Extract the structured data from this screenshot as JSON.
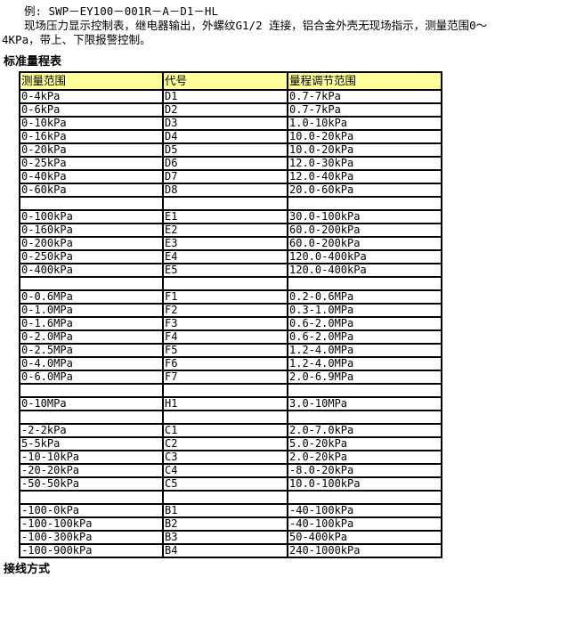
{
  "page": {
    "example_line": "例: SWP－EY100－001R－A－D1－HL",
    "desc_line1": "现场压力显示控制表，继电器输出，外螺纹G1/2 连接，铝合金外壳无现场指示，测量范围0～",
    "desc_line2": "4KPa，带上、下限报警控制。",
    "table_title": "标准量程表",
    "footer_title": "接线方式"
  },
  "table": {
    "header_bg": "#FFFF99",
    "border_color": "#000000",
    "headers": [
      "测量范围",
      "代号",
      "量程调节范围"
    ],
    "rows": [
      [
        "0-4kPa",
        "D1",
        "0.7-7kPa"
      ],
      [
        "0-6kPa",
        "D2",
        "0.7-7kPa"
      ],
      [
        "0-10kPa",
        "D3",
        "1.0-10kPa"
      ],
      [
        "0-16kPa",
        "D4",
        "10.0-20kPa"
      ],
      [
        "0-20kPa",
        "D5",
        "10.0-20kPa"
      ],
      [
        "0-25kPa",
        "D6",
        "12.0-30kPa"
      ],
      [
        "0-40kPa",
        "D7",
        "12.0-40kPa"
      ],
      [
        "0-60kPa",
        "D8",
        "20.0-60kPa"
      ],
      [
        "",
        "",
        ""
      ],
      [
        "0-100kPa",
        "E1",
        "30.0-100kPa"
      ],
      [
        "0-160kPa",
        "E2",
        "60.0-200kPa"
      ],
      [
        "0-200kPa",
        "E3",
        "60.0-200kPa"
      ],
      [
        "0-250kPa",
        "E4",
        "120.0-400kPa"
      ],
      [
        "0-400kPa",
        "E5",
        "120.0-400kPa"
      ],
      [
        "",
        "",
        ""
      ],
      [
        "0-0.6MPa",
        "F1",
        "0.2-0.6MPa"
      ],
      [
        "0-1.0MPa",
        "F2",
        "0.3-1.0MPa"
      ],
      [
        "0-1.6MPa",
        "F3",
        "0.6-2.0MPa"
      ],
      [
        "0-2.0MPa",
        "F4",
        "0.6-2.0MPa"
      ],
      [
        "0-2.5MPa",
        "F5",
        "1.2-4.0MPa"
      ],
      [
        "0-4.0MPa",
        "F6",
        "1.2-4.0MPa"
      ],
      [
        "0-6.0MPa",
        "F7",
        "2.0-6.9MPa"
      ],
      [
        "",
        "",
        ""
      ],
      [
        "0-10MPa",
        "H1",
        "3.0-10MPa"
      ],
      [
        "",
        "",
        ""
      ],
      [
        "-2-2kPa",
        "C1",
        "2.0-7.0kPa"
      ],
      [
        "5-5kPa",
        "C2",
        "5.0-20kPa"
      ],
      [
        "-10-10kPa",
        "C3",
        "2.0-20kPa"
      ],
      [
        "-20-20kPa",
        "C4",
        "-8.0-20kPa"
      ],
      [
        "-50-50kPa",
        "C5",
        "10.0-100kPa"
      ],
      [
        "",
        "",
        ""
      ],
      [
        "-100-0kPa",
        "B1",
        "-40-100kPa"
      ],
      [
        "-100-100kPa",
        "B2",
        "-40-100kPa"
      ],
      [
        "-100-300kPa",
        "B3",
        "50-400kPa"
      ],
      [
        "-100-900kPa",
        "B4",
        "240-1000kPa"
      ]
    ]
  }
}
